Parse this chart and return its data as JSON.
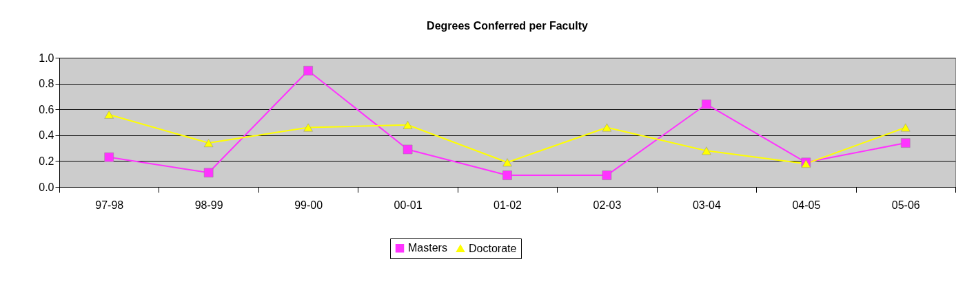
{
  "chart_data": {
    "type": "line",
    "title": "Degrees Conferred per Faculty",
    "categories": [
      "97-98",
      "98-99",
      "99-00",
      "00-01",
      "01-02",
      "02-03",
      "03-04",
      "04-05",
      "05-06"
    ],
    "series": [
      {
        "name": "Masters",
        "color": "#ff33ff",
        "marker": "square",
        "values": [
          0.23,
          0.11,
          0.9,
          0.29,
          0.09,
          0.09,
          0.64,
          0.19,
          0.34
        ]
      },
      {
        "name": "Doctorate",
        "color": "#ffff00",
        "marker": "triangle",
        "values": [
          0.56,
          0.34,
          0.46,
          0.48,
          0.19,
          0.46,
          0.28,
          0.18,
          0.46
        ]
      }
    ],
    "ylim": [
      0,
      1.0
    ],
    "yticks": [
      {
        "value": 0,
        "label": "0.0"
      },
      0.2,
      0.4,
      0.6,
      0.8,
      {
        "value": 1,
        "label": "1.0"
      }
    ],
    "grid": "y",
    "legend": "bottom",
    "line_style": "solid"
  }
}
